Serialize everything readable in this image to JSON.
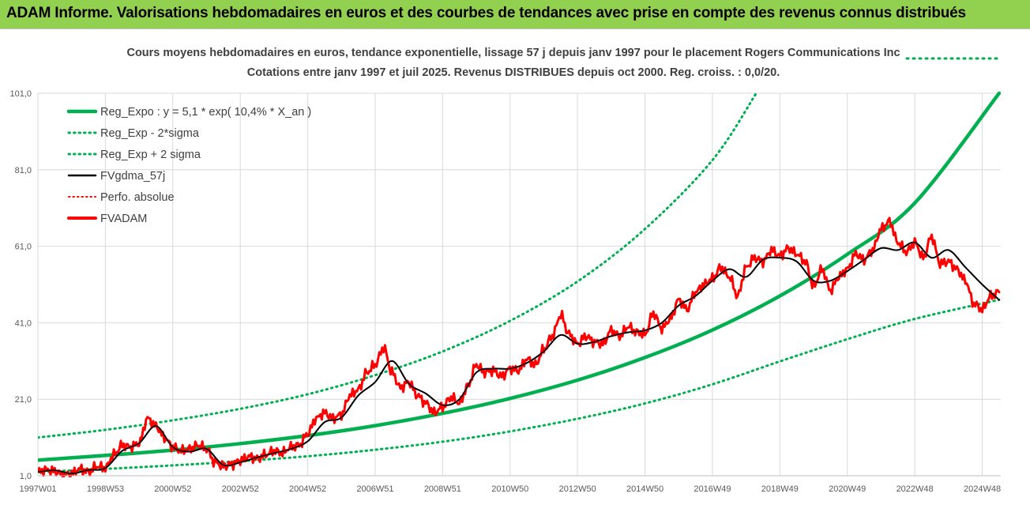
{
  "header": {
    "title": "ADAM Informe. Valorisations hebdomadaires en euros et des courbes de tendances avec prise en compte des revenus connus distribués"
  },
  "colors": {
    "title_bar": "#92d050",
    "reg_green": "#00b050",
    "fv_black": "#000000",
    "fvadam_red": "#ff0000",
    "perfo_red": "#ff0000",
    "grid": "#d9d9d9",
    "axis_text": "#595959",
    "subtitle_text": "#404040"
  },
  "chart_data": {
    "type": "line",
    "title_line1": "Cours moyens hebdomadaires en euros, tendance exponentielle, lissage 57 j depuis janv 1997 pour le placement Rogers Communications Inc",
    "title_line2": "Cotations entre janv 1997 et juil 2025. Revenus DISTRIBUES depuis oct 2000. Reg. croiss. : 0,0/20.",
    "y_ticks": [
      "1,0",
      "21,0",
      "41,0",
      "61,0",
      "81,0",
      "101,0"
    ],
    "y_tick_values": [
      1,
      21,
      41,
      61,
      81,
      101
    ],
    "ylim": [
      1,
      101
    ],
    "x_tick_labels": [
      "1997W01",
      "1998W53",
      "2000W52",
      "2002W52",
      "2004W52",
      "2006W51",
      "2008W51",
      "2010W50",
      "2012W50",
      "2014W50",
      "2016W49",
      "2018W49",
      "2020W49",
      "2022W48",
      "2024W48"
    ],
    "x_ticks_year": [
      1997.0,
      1999.0,
      2001.0,
      2003.0,
      2005.0,
      2007.0,
      2009.0,
      2011.0,
      2013.0,
      2015.0,
      2017.0,
      2019.0,
      2021.0,
      2023.0,
      2025.0
    ],
    "xlim": [
      1997.0,
      2025.55
    ],
    "grid": true,
    "legend_position": "top-left",
    "legend": [
      {
        "label": "Reg_Expo : y = 5,1 * exp( 10,4% *  X_an )",
        "style": "solid-thick",
        "color": "#00b050"
      },
      {
        "label": "Reg_Exp - 2*sigma",
        "style": "dotted",
        "color": "#00b050"
      },
      {
        "label": "Reg_Exp + 2 sigma",
        "style": "dotted",
        "color": "#00b050"
      },
      {
        "label": "FVgdma_57j",
        "style": "solid",
        "color": "#000000"
      },
      {
        "label": "Perfo. absolue",
        "style": "dotted",
        "color": "#ff0000"
      },
      {
        "label": "FVADAM",
        "style": "solid-thick",
        "color": "#ff0000"
      }
    ],
    "series": [
      {
        "name": "Reg_Expo : y = 5,1 * exp( 10,4% *  X_an )",
        "x": [
          1997.0,
          1999.0,
          2001.0,
          2003.0,
          2005.0,
          2007.0,
          2009.0,
          2011.0,
          2013.0,
          2015.0,
          2017.0,
          2019.0,
          2021.0,
          2023.0,
          2025.5
        ],
        "y": [
          5.1,
          6.3,
          7.7,
          9.4,
          11.5,
          14.1,
          17.3,
          21.2,
          26.0,
          31.9,
          39.1,
          48.0,
          58.9,
          72.3,
          101.0
        ]
      },
      {
        "name": "Reg_Exp - 2*sigma",
        "x": [
          1997.0,
          1999.0,
          2001.0,
          2003.0,
          2005.0,
          2007.0,
          2009.0,
          2011.0,
          2013.0,
          2015.0,
          2017.0,
          2019.0,
          2021.0,
          2023.0,
          2025.5
        ],
        "y": [
          2.0,
          2.8,
          3.7,
          4.8,
          6.1,
          7.8,
          9.9,
          12.6,
          15.9,
          19.9,
          24.9,
          30.9,
          36.7,
          42.0,
          47.0
        ]
      },
      {
        "name": "Reg_Exp + 2 sigma",
        "x": [
          1997.0,
          1999.0,
          2001.0,
          2003.0,
          2005.0,
          2007.0,
          2009.0,
          2011.0,
          2013.0,
          2015.0,
          2017.0,
          2018.3
        ],
        "y": [
          11.0,
          13.0,
          15.5,
          18.5,
          22.3,
          27.3,
          33.5,
          41.5,
          51.8,
          65.5,
          83.5,
          101.0
        ]
      },
      {
        "name": "FVgdma_57j",
        "x": [
          1997.0,
          1997.5,
          1998.0,
          1998.5,
          1999.0,
          1999.5,
          2000.0,
          2000.5,
          2001.0,
          2001.5,
          2002.0,
          2002.5,
          2003.0,
          2003.5,
          2004.0,
          2004.5,
          2005.0,
          2005.5,
          2006.0,
          2006.5,
          2007.0,
          2007.5,
          2008.0,
          2008.5,
          2009.0,
          2009.5,
          2010.0,
          2010.5,
          2011.0,
          2011.5,
          2012.0,
          2012.5,
          2013.0,
          2013.5,
          2014.0,
          2014.5,
          2015.0,
          2015.5,
          2016.0,
          2016.5,
          2017.0,
          2017.5,
          2018.0,
          2018.5,
          2019.0,
          2019.5,
          2020.0,
          2020.5,
          2021.0,
          2021.5,
          2022.0,
          2022.5,
          2023.0,
          2023.5,
          2024.0,
          2024.5,
          2025.0,
          2025.5
        ],
        "y": [
          2.0,
          2.4,
          1.6,
          2.5,
          3.0,
          7.5,
          9.5,
          14.0,
          8.5,
          7.3,
          8.0,
          3.8,
          4.5,
          5.8,
          6.9,
          8.0,
          10.0,
          15.0,
          16.2,
          22.0,
          25.5,
          31.0,
          25.0,
          22.5,
          19.5,
          21.0,
          28.0,
          29.0,
          29.0,
          30.5,
          33.5,
          37.8,
          35.5,
          36.0,
          37.5,
          38.5,
          39.0,
          41.0,
          45.5,
          48.0,
          52.0,
          55.0,
          53.0,
          57.5,
          58.0,
          57.0,
          52.0,
          52.0,
          54.5,
          57.5,
          60.5,
          60.0,
          62.0,
          58.0,
          60.0,
          55.5,
          51.0,
          47.0
        ]
      },
      {
        "name": "FVADAM",
        "x": [
          1997.0,
          1997.25,
          1997.5,
          1997.75,
          1998.0,
          1998.25,
          1998.5,
          1998.75,
          1999.0,
          1999.25,
          1999.5,
          1999.75,
          2000.0,
          2000.25,
          2000.5,
          2000.75,
          2001.0,
          2001.25,
          2001.5,
          2001.75,
          2002.0,
          2002.25,
          2002.5,
          2002.75,
          2003.0,
          2003.25,
          2003.5,
          2003.75,
          2004.0,
          2004.25,
          2004.5,
          2004.75,
          2005.0,
          2005.25,
          2005.5,
          2005.75,
          2006.0,
          2006.25,
          2006.5,
          2006.75,
          2007.0,
          2007.25,
          2007.5,
          2007.75,
          2008.0,
          2008.25,
          2008.5,
          2008.75,
          2009.0,
          2009.25,
          2009.5,
          2009.75,
          2010.0,
          2010.25,
          2010.5,
          2010.75,
          2011.0,
          2011.25,
          2011.5,
          2011.75,
          2012.0,
          2012.25,
          2012.5,
          2012.75,
          2013.0,
          2013.25,
          2013.5,
          2013.75,
          2014.0,
          2014.25,
          2014.5,
          2014.75,
          2015.0,
          2015.25,
          2015.5,
          2015.75,
          2016.0,
          2016.25,
          2016.5,
          2016.75,
          2017.0,
          2017.25,
          2017.5,
          2017.75,
          2018.0,
          2018.25,
          2018.5,
          2018.75,
          2019.0,
          2019.25,
          2019.5,
          2019.75,
          2020.0,
          2020.25,
          2020.5,
          2020.75,
          2021.0,
          2021.25,
          2021.5,
          2021.75,
          2022.0,
          2022.25,
          2022.5,
          2022.75,
          2023.0,
          2023.25,
          2023.5,
          2023.75,
          2024.0,
          2024.25,
          2024.5,
          2024.75,
          2025.0,
          2025.25,
          2025.5
        ],
        "y": [
          2.0,
          2.6,
          2.2,
          1.2,
          1.6,
          2.8,
          2.0,
          3.5,
          3.0,
          6.5,
          9.0,
          8.5,
          9.5,
          16.0,
          14.0,
          11.0,
          8.5,
          7.5,
          8.0,
          9.0,
          8.0,
          4.5,
          3.5,
          4.0,
          5.0,
          6.0,
          5.5,
          6.5,
          7.5,
          7.0,
          8.5,
          9.0,
          12.0,
          16.0,
          17.5,
          16.0,
          17.0,
          22.0,
          23.5,
          28.0,
          30.0,
          34.5,
          28.0,
          24.0,
          25.5,
          22.0,
          20.0,
          17.5,
          19.0,
          21.5,
          20.0,
          24.5,
          30.0,
          28.0,
          28.5,
          27.0,
          29.0,
          28.5,
          31.5,
          30.0,
          34.0,
          37.5,
          43.0,
          38.0,
          35.5,
          37.5,
          36.0,
          35.5,
          39.0,
          37.5,
          40.0,
          38.5,
          38.0,
          43.5,
          39.5,
          42.0,
          47.0,
          44.5,
          49.0,
          51.0,
          52.5,
          55.5,
          53.0,
          48.0,
          55.5,
          58.0,
          57.0,
          60.0,
          58.5,
          60.5,
          59.0,
          57.0,
          50.5,
          55.0,
          49.5,
          53.0,
          55.0,
          59.0,
          57.5,
          60.0,
          65.5,
          67.5,
          62.0,
          59.5,
          62.0,
          58.0,
          63.5,
          56.5,
          57.0,
          55.0,
          52.0,
          46.0,
          44.5,
          48.0,
          49.0
        ]
      }
    ]
  }
}
